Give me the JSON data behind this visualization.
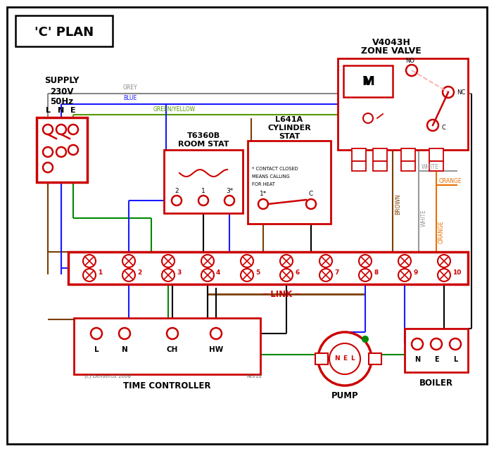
{
  "bg": "#ffffff",
  "black": "#000000",
  "red": "#cc0000",
  "blue": "#1a1aff",
  "green": "#008800",
  "brown": "#7B3F00",
  "grey": "#888888",
  "orange": "#E87000",
  "green_yellow": "#559900",
  "white_wire": "#999999",
  "pink_dash": "#ffaaaa",
  "title": "'C' PLAN",
  "supply": [
    "SUPPLY",
    "230V",
    "50Hz"
  ],
  "lne": [
    "L",
    "N",
    "E"
  ],
  "zv_label": [
    "V4043H",
    "ZONE VALVE"
  ],
  "rs_label": [
    "T6360B",
    "ROOM STAT"
  ],
  "cs_label": [
    "L641A",
    "CYLINDER",
    "STAT"
  ],
  "tc_label": "TIME CONTROLLER",
  "pump_label": "PUMP",
  "boiler_label": "BOILER",
  "link_label": "LINK",
  "footnote": [
    "* CONTACT CLOSED",
    "MEANS CALLING",
    "FOR HEAT"
  ],
  "copyright": "(c) DenverOz 2008",
  "rev": "Rev1d",
  "wire_labels": {
    "grey": "GREY",
    "blue": "BLUE",
    "gy": "GREEN/YELLOW",
    "brown": "BROWN",
    "white": "WHITE",
    "orange": "ORANGE"
  }
}
